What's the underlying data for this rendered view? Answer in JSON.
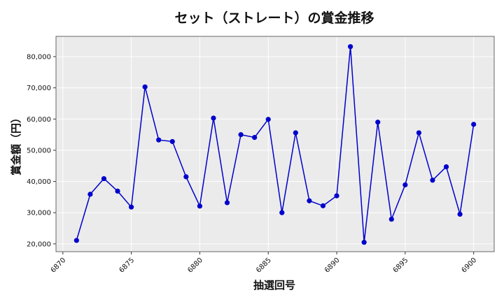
{
  "chart_data": {
    "type": "line",
    "title": "セット（ストレート）の賞金推移",
    "xlabel": "抽選回号",
    "ylabel": "賞金額（円）",
    "xlim": [
      6869.5,
      6901.5
    ],
    "ylim": [
      17500,
      86500
    ],
    "xticks": [
      6870,
      6875,
      6880,
      6885,
      6890,
      6895,
      6900
    ],
    "yticks": [
      20000,
      30000,
      40000,
      50000,
      60000,
      70000,
      80000
    ],
    "ytick_labels": [
      "20,000",
      "30,000",
      "40,000",
      "50,000",
      "60,000",
      "70,000",
      "80,000"
    ],
    "grid": true,
    "background": "#ebebeb",
    "line_color": "#0000cc",
    "series": [
      {
        "x": [
          6871,
          6872,
          6873,
          6874,
          6875,
          6876,
          6877,
          6878,
          6879,
          6880,
          6881,
          6882,
          6883,
          6884,
          6885,
          6886,
          6887,
          6888,
          6889,
          6890,
          6891,
          6892,
          6893,
          6894,
          6895,
          6896,
          6897,
          6898,
          6899,
          6900
        ],
        "values": [
          21100,
          35900,
          40900,
          36900,
          31800,
          70300,
          53300,
          52800,
          41500,
          32100,
          60300,
          33200,
          55000,
          54100,
          59900,
          30000,
          55600,
          33800,
          32200,
          35400,
          83200,
          20500,
          59000,
          27900,
          38900,
          55600,
          40400,
          44700,
          29500,
          58300
        ]
      }
    ]
  }
}
